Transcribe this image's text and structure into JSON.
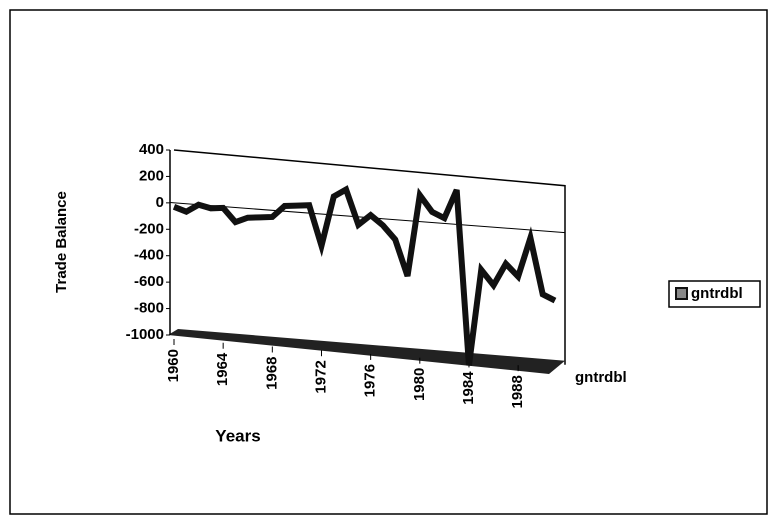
{
  "chart_data": {
    "type": "line",
    "y_label": "Trade Balance",
    "x_label": "Years",
    "depth_label": "gntrdbl",
    "x": [
      1960,
      1961,
      1962,
      1963,
      1964,
      1965,
      1966,
      1967,
      1968,
      1969,
      1970,
      1971,
      1972,
      1973,
      1974,
      1975,
      1976,
      1977,
      1978,
      1979,
      1980,
      1981,
      1982,
      1983,
      1984,
      1985,
      1986,
      1987,
      1988,
      1989,
      1990,
      1991
    ],
    "series": [
      {
        "name": "gntrdbl",
        "color": "#111111",
        "values": [
          -30,
          -60,
          0,
          -20,
          -10,
          -110,
          -70,
          -60,
          -50,
          40,
          50,
          60,
          -240,
          140,
          200,
          -60,
          20,
          -50,
          -150,
          -420,
          200,
          80,
          40,
          260,
          -1060,
          -330,
          -440,
          -270,
          -360,
          -60,
          -480,
          -520
        ]
      }
    ],
    "xlim": [
      1960,
      1991
    ],
    "xticks": [
      1960,
      1964,
      1968,
      1972,
      1976,
      1980,
      1984,
      1988
    ],
    "ylim": [
      -1000,
      400
    ],
    "yticks": [
      400,
      200,
      0,
      -200,
      -400,
      -600,
      -800,
      -1000
    ],
    "grid": false,
    "legend": "right"
  }
}
